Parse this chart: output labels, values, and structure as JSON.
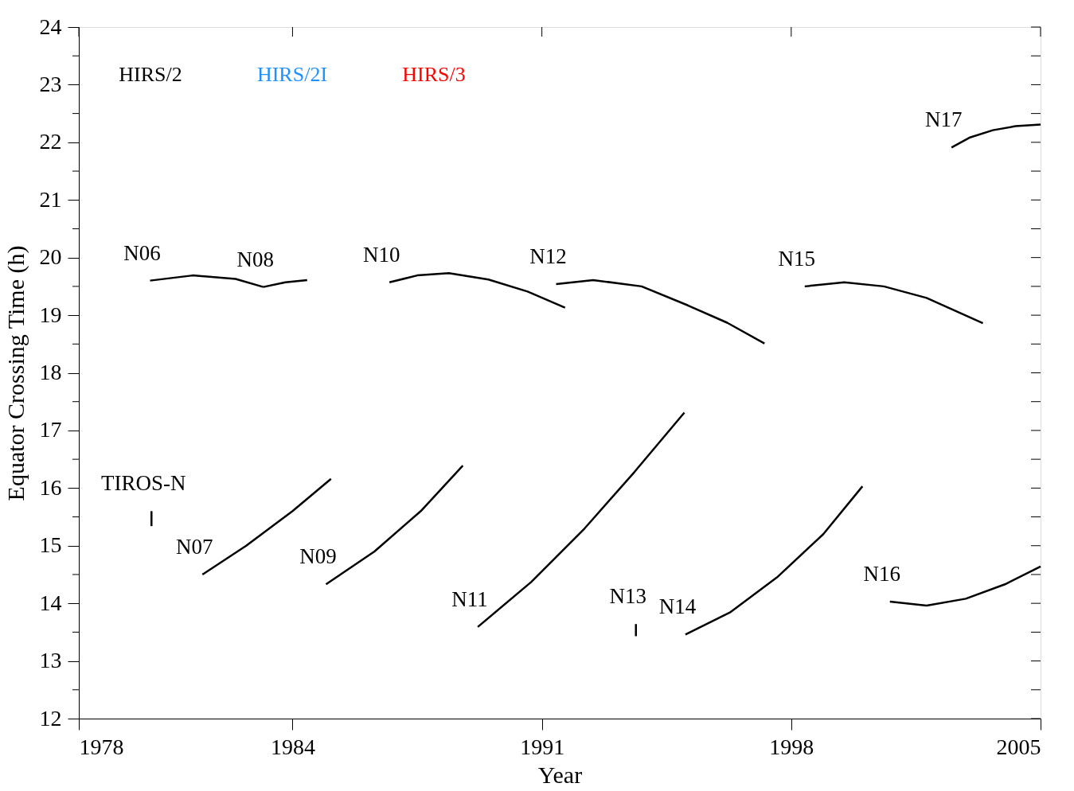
{
  "chart_data": {
    "type": "line",
    "xlabel": "Year",
    "ylabel": "Equator Crossing Time (h)",
    "xlim": [
      1978,
      2005
    ],
    "xticks": [
      1978,
      1984,
      1991,
      1998,
      2005
    ],
    "ylim": [
      12,
      24
    ],
    "yticks": [
      12,
      {
        "value": 12.5,
        "label": null
      },
      13,
      {
        "value": 13.5,
        "label": null
      },
      14,
      {
        "value": 14.5,
        "label": null
      },
      15,
      {
        "value": 15.5,
        "label": null
      },
      16,
      {
        "value": 16.5,
        "label": null
      },
      17,
      {
        "value": 17.5,
        "label": null
      },
      18,
      {
        "value": 18.5,
        "label": null
      },
      19,
      {
        "value": 19.5,
        "label": null
      },
      20,
      {
        "value": 20.5,
        "label": null
      },
      21,
      {
        "value": 21.5,
        "label": null
      },
      22,
      {
        "value": 22.5,
        "label": null
      },
      23,
      {
        "value": 23.5,
        "label": null
      },
      24
    ],
    "grid": false,
    "legend": "top left",
    "marker": "none",
    "line_style": "solid",
    "series": [
      {
        "name": "TIROS-N",
        "color": "#000000",
        "x": [
          1980.04,
          1980.04
        ],
        "values": [
          15.6,
          15.34
        ]
      },
      {
        "name": "N06",
        "color": "#000000",
        "x": [
          1980.0,
          1981.2,
          1982.4,
          1983.18
        ],
        "values": [
          19.6,
          19.69,
          19.63,
          19.49
        ]
      },
      {
        "name": "N07",
        "color": "#000000",
        "x": [
          1981.47,
          1982.7,
          1984.0,
          1985.08
        ],
        "values": [
          14.5,
          15.0,
          15.6,
          16.16
        ]
      },
      {
        "name": "N08",
        "color": "#000000",
        "x": [
          1983.18,
          1983.8,
          1984.41
        ],
        "values": [
          19.49,
          19.57,
          19.61
        ]
      },
      {
        "name": "N09",
        "color": "#000000",
        "x": [
          1984.94,
          1986.3,
          1987.6,
          1988.78
        ],
        "values": [
          14.33,
          14.9,
          15.6,
          16.39
        ]
      },
      {
        "name": "N10",
        "color": "#000000",
        "x": [
          1986.72,
          1987.5,
          1988.39,
          1989.5,
          1990.6,
          1991.65
        ],
        "values": [
          19.57,
          19.69,
          19.73,
          19.62,
          19.41,
          19.13
        ]
      },
      {
        "name": "N11",
        "color": "#000000",
        "x": [
          1989.2,
          1990.7,
          1992.2,
          1993.6,
          1995.0
        ],
        "values": [
          13.59,
          14.37,
          15.3,
          16.28,
          17.31
        ]
      },
      {
        "name": "N12",
        "color": "#000000",
        "x": [
          1991.4,
          1992.44,
          1993.8,
          1995.1,
          1996.2,
          1997.25
        ],
        "values": [
          19.54,
          19.61,
          19.5,
          19.17,
          18.87,
          18.51
        ]
      },
      {
        "name": "N13",
        "color": "#000000",
        "x": [
          1993.64,
          1993.64
        ],
        "values": [
          13.64,
          13.43
        ]
      },
      {
        "name": "N14",
        "color": "#000000",
        "x": [
          1995.03,
          1996.3,
          1997.6,
          1998.9,
          2000.0
        ],
        "values": [
          13.46,
          13.85,
          14.45,
          15.2,
          16.03
        ]
      },
      {
        "name": "N15",
        "color": "#000000",
        "x": [
          1998.38,
          1999.49,
          2000.6,
          2001.8,
          2003.38
        ],
        "values": [
          19.5,
          19.57,
          19.5,
          19.3,
          18.86
        ]
      },
      {
        "name": "N16",
        "color": "#000000",
        "x": [
          2000.77,
          2001.8,
          2002.9,
          2004.0,
          2005.0
        ],
        "values": [
          14.03,
          13.96,
          14.08,
          14.33,
          14.64
        ]
      },
      {
        "name": "N17",
        "color": "#000000",
        "x": [
          2002.5,
          2003.0,
          2003.66,
          2004.3,
          2005.0
        ],
        "values": [
          21.91,
          22.08,
          22.21,
          22.28,
          22.31
        ]
      },
      {
        "name": "HIRS/2",
        "color": "#000000"
      },
      {
        "name": "HIRS/2I",
        "color": "#1e90ff"
      },
      {
        "name": "HIRS/3",
        "color": "#ff0000"
      }
    ]
  }
}
